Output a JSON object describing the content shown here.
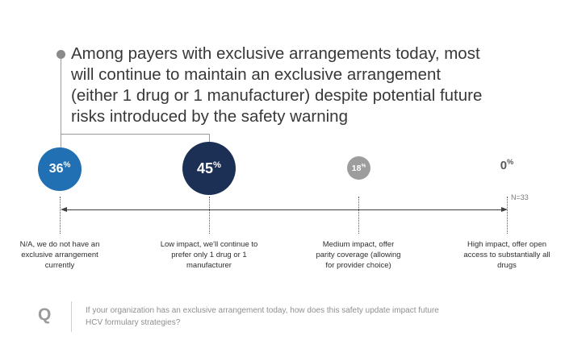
{
  "slide": {
    "headline_lines": [
      "Among payers with exclusive arrangements today, most",
      "will continue to maintain an exclusive arrangement",
      "(either 1 drug or 1 manufacturer) despite potential future",
      "risks introduced by the safety warning"
    ],
    "footer": {
      "q_label": "Q",
      "question_lines": [
        "If your organization has an exclusive arrangement today, how does this safety update impact future",
        "HCV formulary strategies?"
      ]
    }
  },
  "chart_data": {
    "type": "scatter",
    "subtype": "proportional-bubble",
    "title": "Among payers with exclusive arrangements today, most will continue to maintain an exclusive arrangement (either 1 drug or 1 manufacturer) despite potential future risks introduced by the safety warning",
    "categories": [
      "N/A, we do not have an exclusive arrangement currently",
      "Low impact, we'll continue to prefer only 1 drug or 1 manufacturer",
      "Medium impact, offer parity coverage (allowing for provider choice)",
      "High impact, offer open access to substantially all drugs"
    ],
    "values": [
      36,
      45,
      18,
      0
    ],
    "unit": "%",
    "sample_label": "N=33",
    "axis_style": "double-headed horizontal arrow with dotted droplines",
    "colors": {
      "bubble_1": "#2170B3",
      "bubble_2": "#1C2F55",
      "bubble_3": "#9D9D9D",
      "zero_text": "#58595B"
    }
  }
}
